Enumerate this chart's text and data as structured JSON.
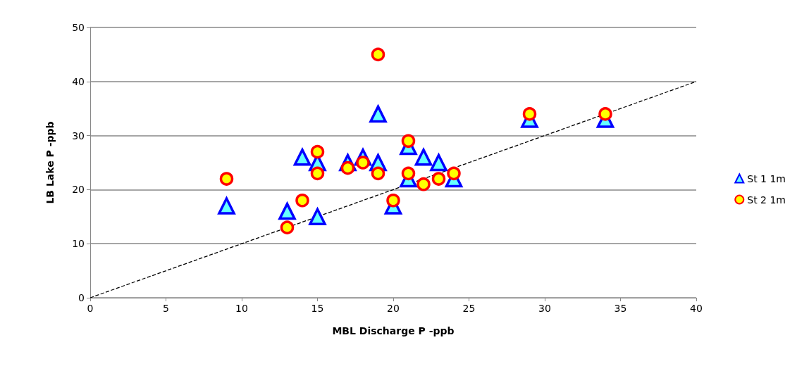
{
  "chart_data": {
    "type": "scatter",
    "xlabel": "MBL Discharge P -ppb",
    "ylabel": "LB Lake P -ppb",
    "xlim": [
      0,
      40
    ],
    "xticks": [
      0,
      5,
      10,
      15,
      20,
      25,
      30,
      35,
      40
    ],
    "ylim": [
      0,
      50
    ],
    "yticks": [
      0,
      10,
      20,
      30,
      40,
      50
    ],
    "grid": "y",
    "legend": "right",
    "series": [
      {
        "name": "St 1 1m",
        "color": "#0000ff",
        "marker": "triangle",
        "x": [
          9,
          13,
          14,
          15,
          15,
          17,
          18,
          19,
          19,
          20,
          21,
          21,
          22,
          23,
          24,
          29,
          34
        ],
        "values": [
          17,
          16,
          26,
          25,
          15,
          25,
          26,
          34,
          25,
          17,
          28,
          22,
          26,
          25,
          22,
          33,
          33
        ]
      },
      {
        "name": "St 2 1m",
        "color": "#ff0000",
        "marker": "circle",
        "x": [
          9,
          13,
          14,
          15,
          15,
          17,
          18,
          19,
          19,
          20,
          21,
          21,
          22,
          23,
          24,
          29,
          34
        ],
        "values": [
          22,
          13,
          18,
          27,
          23,
          24,
          25,
          45,
          23,
          18,
          29,
          23,
          21,
          22,
          23,
          34,
          34
        ]
      },
      {
        "type": "line",
        "color": "#000000",
        "line_style": "dashed",
        "marker": "none",
        "x": [
          0,
          40
        ],
        "values": [
          0,
          40
        ]
      }
    ]
  }
}
